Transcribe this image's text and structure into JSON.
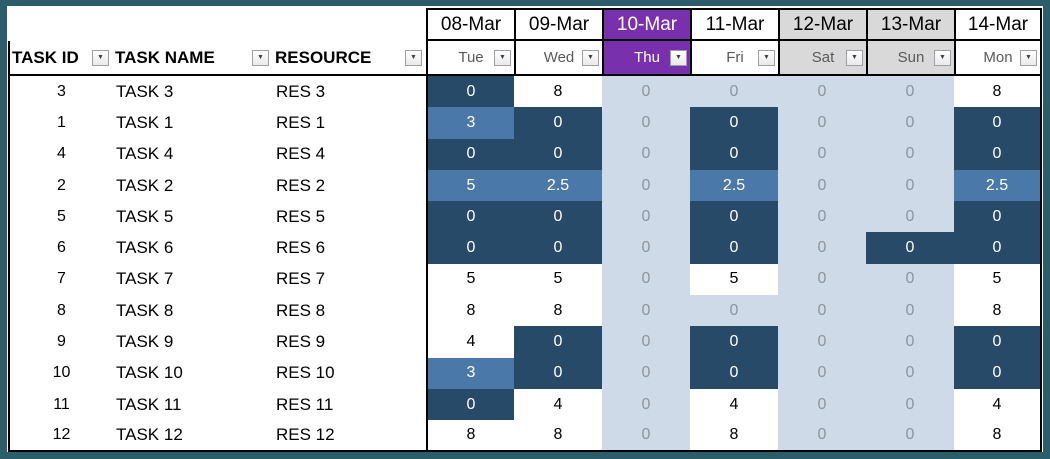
{
  "colors": {
    "frame": "#2C5D6B",
    "cell_dark": "#274A69",
    "cell_medium": "#4A78A8",
    "cell_shaded": "#CFDAE8",
    "cell_shaded_text": "#8D959D",
    "today": "#7830AC",
    "weekend_header": "#D9D9D9",
    "day_text": "#595959"
  },
  "icons": {
    "filter_arrow": "▼"
  },
  "table": {
    "columns": [
      "TASK ID",
      "TASK NAME",
      "RESOURCE"
    ],
    "dates": [
      {
        "date": "08-Mar",
        "day": "Tue",
        "type": "normal"
      },
      {
        "date": "09-Mar",
        "day": "Wed",
        "type": "normal"
      },
      {
        "date": "10-Mar",
        "day": "Thu",
        "type": "today"
      },
      {
        "date": "11-Mar",
        "day": "Fri",
        "type": "normal"
      },
      {
        "date": "12-Mar",
        "day": "Sat",
        "type": "weekend"
      },
      {
        "date": "13-Mar",
        "day": "Sun",
        "type": "weekend"
      },
      {
        "date": "14-Mar",
        "day": "Mon",
        "type": "normal"
      }
    ],
    "rows": [
      {
        "id": "3",
        "name": "TASK 3",
        "res": "RES 3",
        "cells": [
          [
            "0",
            "dark"
          ],
          [
            "8",
            "plain"
          ],
          [
            "0",
            "shaded"
          ],
          [
            "0",
            "shaded"
          ],
          [
            "0",
            "shaded"
          ],
          [
            "0",
            "shaded"
          ],
          [
            "8",
            "plain"
          ]
        ]
      },
      {
        "id": "1",
        "name": "TASK 1",
        "res": "RES 1",
        "cells": [
          [
            "3",
            "med"
          ],
          [
            "0",
            "dark"
          ],
          [
            "0",
            "shaded"
          ],
          [
            "0",
            "dark"
          ],
          [
            "0",
            "shaded"
          ],
          [
            "0",
            "shaded"
          ],
          [
            "0",
            "dark"
          ]
        ]
      },
      {
        "id": "4",
        "name": "TASK 4",
        "res": "RES 4",
        "cells": [
          [
            "0",
            "dark"
          ],
          [
            "0",
            "dark"
          ],
          [
            "0",
            "shaded"
          ],
          [
            "0",
            "dark"
          ],
          [
            "0",
            "shaded"
          ],
          [
            "0",
            "shaded"
          ],
          [
            "0",
            "dark"
          ]
        ]
      },
      {
        "id": "2",
        "name": "TASK 2",
        "res": "RES 2",
        "cells": [
          [
            "5",
            "med"
          ],
          [
            "2.5",
            "med"
          ],
          [
            "0",
            "shaded"
          ],
          [
            "2.5",
            "med"
          ],
          [
            "0",
            "shaded"
          ],
          [
            "0",
            "shaded"
          ],
          [
            "2.5",
            "med"
          ]
        ]
      },
      {
        "id": "5",
        "name": "TASK 5",
        "res": "RES 5",
        "cells": [
          [
            "0",
            "dark"
          ],
          [
            "0",
            "dark"
          ],
          [
            "0",
            "shaded"
          ],
          [
            "0",
            "dark"
          ],
          [
            "0",
            "shaded"
          ],
          [
            "0",
            "shaded"
          ],
          [
            "0",
            "dark"
          ]
        ]
      },
      {
        "id": "6",
        "name": "TASK 6",
        "res": "RES 6",
        "cells": [
          [
            "0",
            "dark"
          ],
          [
            "0",
            "dark"
          ],
          [
            "0",
            "shaded"
          ],
          [
            "0",
            "dark"
          ],
          [
            "0",
            "shaded"
          ],
          [
            "0",
            "dark"
          ],
          [
            "0",
            "dark"
          ]
        ]
      },
      {
        "id": "7",
        "name": "TASK 7",
        "res": "RES 7",
        "cells": [
          [
            "5",
            "plain"
          ],
          [
            "5",
            "plain"
          ],
          [
            "0",
            "shaded"
          ],
          [
            "5",
            "plain"
          ],
          [
            "0",
            "shaded"
          ],
          [
            "0",
            "shaded"
          ],
          [
            "5",
            "plain"
          ]
        ]
      },
      {
        "id": "8",
        "name": "TASK 8",
        "res": "RES 8",
        "cells": [
          [
            "8",
            "plain"
          ],
          [
            "8",
            "plain"
          ],
          [
            "0",
            "shaded"
          ],
          [
            "0",
            "shaded"
          ],
          [
            "0",
            "shaded"
          ],
          [
            "0",
            "shaded"
          ],
          [
            "8",
            "plain"
          ]
        ]
      },
      {
        "id": "9",
        "name": "TASK 9",
        "res": "RES 9",
        "cells": [
          [
            "4",
            "plain"
          ],
          [
            "0",
            "dark"
          ],
          [
            "0",
            "shaded"
          ],
          [
            "0",
            "dark"
          ],
          [
            "0",
            "shaded"
          ],
          [
            "0",
            "shaded"
          ],
          [
            "0",
            "dark"
          ]
        ]
      },
      {
        "id": "10",
        "name": "TASK 10",
        "res": "RES 10",
        "cells": [
          [
            "3",
            "med"
          ],
          [
            "0",
            "dark"
          ],
          [
            "0",
            "shaded"
          ],
          [
            "0",
            "dark"
          ],
          [
            "0",
            "shaded"
          ],
          [
            "0",
            "shaded"
          ],
          [
            "0",
            "dark"
          ]
        ]
      },
      {
        "id": "11",
        "name": "TASK 11",
        "res": "RES 11",
        "cells": [
          [
            "0",
            "dark"
          ],
          [
            "4",
            "plain"
          ],
          [
            "0",
            "shaded"
          ],
          [
            "4",
            "plain"
          ],
          [
            "0",
            "shaded"
          ],
          [
            "0",
            "shaded"
          ],
          [
            "4",
            "plain"
          ]
        ]
      },
      {
        "id": "12",
        "name": "TASK 12",
        "res": "RES 12",
        "cells": [
          [
            "8",
            "plain"
          ],
          [
            "8",
            "plain"
          ],
          [
            "0",
            "shaded"
          ],
          [
            "8",
            "plain"
          ],
          [
            "0",
            "shaded"
          ],
          [
            "0",
            "shaded"
          ],
          [
            "8",
            "plain"
          ]
        ]
      }
    ]
  }
}
